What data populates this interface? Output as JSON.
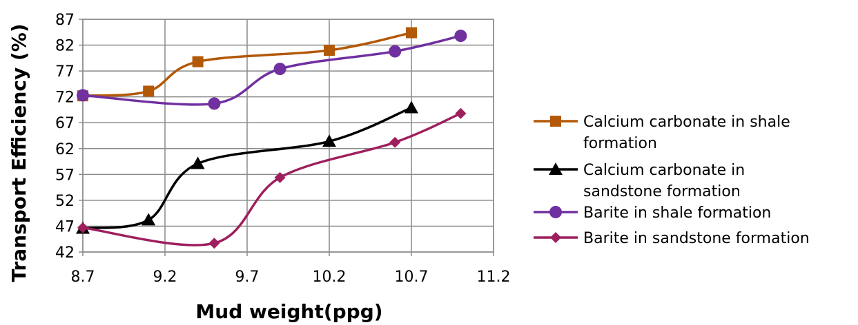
{
  "chart_data": {
    "type": "line",
    "title": "",
    "xlabel": "Mud weight(ppg)",
    "ylabel": "Transport Efficiency (%)",
    "xlim": [
      8.7,
      11.2
    ],
    "ylim": [
      42,
      87
    ],
    "xticks": [
      "8.7",
      "9.2",
      "9.7",
      "10.2",
      "10.7",
      "11.2"
    ],
    "yticks": [
      "42",
      "47",
      "52",
      "57",
      "62",
      "67",
      "72",
      "77",
      "82",
      "87"
    ],
    "grid": true,
    "legend_position": "right",
    "series": [
      {
        "name": "Calcium carbonate in shale formation",
        "legend_lines": [
          "Calcium carbonate in shale",
          "formation"
        ],
        "color": "#b35806",
        "marker": "square",
        "x": [
          8.7,
          9.1,
          9.4,
          10.2,
          10.7
        ],
        "y": [
          72.2,
          73.1,
          78.8,
          81.0,
          84.4
        ]
      },
      {
        "name": "Calcium carbonate in sandstone formation",
        "legend_lines": [
          "Calcium carbonate in",
          "sandstone formation"
        ],
        "color": "#000000",
        "marker": "triangle",
        "x": [
          8.7,
          9.1,
          9.4,
          10.2,
          10.7
        ],
        "y": [
          46.6,
          48.2,
          59.1,
          63.4,
          69.9
        ]
      },
      {
        "name": "Barite in shale formation",
        "legend_lines": [
          "Barite in shale formation"
        ],
        "color": "#7030a0",
        "marker": "circle",
        "x": [
          8.7,
          9.5,
          9.9,
          10.6,
          11.0
        ],
        "y": [
          72.3,
          70.7,
          77.4,
          80.8,
          83.8
        ]
      },
      {
        "name": "Barite in sandstone formation",
        "legend_lines": [
          "Barite in sandstone formation"
        ],
        "color": "#9e1f5e",
        "marker": "diamond",
        "x": [
          8.7,
          9.5,
          9.9,
          10.6,
          11.0
        ],
        "y": [
          46.7,
          43.7,
          56.4,
          63.2,
          68.8
        ]
      }
    ]
  }
}
